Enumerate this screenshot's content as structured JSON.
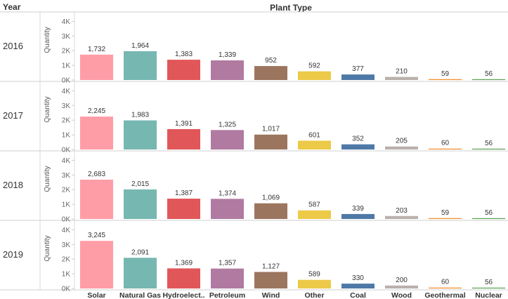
{
  "chart_data": {
    "type": "bar",
    "row_header": "Year",
    "column_header": "Plant Type",
    "ylabel": "Quantity",
    "ylim": [
      0,
      4000
    ],
    "yticks": [
      "0K",
      "1K",
      "2K",
      "3K",
      "4K"
    ],
    "categories": [
      "Solar",
      "Natural Gas",
      "Hydroelect..",
      "Petroleum",
      "Wind",
      "Other",
      "Coal",
      "Wood",
      "Geothermal",
      "Nuclear"
    ],
    "colors": [
      "#ff9da7",
      "#76b7b2",
      "#e15759",
      "#b07aa1",
      "#9c755f",
      "#edc948",
      "#4e79a7",
      "#bab0ac",
      "#f28e2b",
      "#59a14f"
    ],
    "series": [
      {
        "name": "2016",
        "values": [
          1732,
          1964,
          1383,
          1339,
          952,
          592,
          377,
          210,
          59,
          56
        ],
        "labels": [
          "1,732",
          "1,964",
          "1,383",
          "1,339",
          "952",
          "592",
          "377",
          "210",
          "59",
          "56"
        ]
      },
      {
        "name": "2017",
        "values": [
          2245,
          1983,
          1391,
          1325,
          1017,
          601,
          352,
          205,
          60,
          56
        ],
        "labels": [
          "2,245",
          "1,983",
          "1,391",
          "1,325",
          "1,017",
          "601",
          "352",
          "205",
          "60",
          "56"
        ]
      },
      {
        "name": "2018",
        "values": [
          2683,
          2015,
          1387,
          1374,
          1069,
          587,
          339,
          203,
          59,
          56
        ],
        "labels": [
          "2,683",
          "2,015",
          "1,387",
          "1,374",
          "1,069",
          "587",
          "339",
          "203",
          "59",
          "56"
        ]
      },
      {
        "name": "2019",
        "values": [
          3245,
          2091,
          1369,
          1357,
          1127,
          589,
          330,
          200,
          60,
          56
        ],
        "labels": [
          "3,245",
          "2,091",
          "1,369",
          "1,357",
          "1,127",
          "589",
          "330",
          "200",
          "60",
          "56"
        ]
      }
    ]
  }
}
